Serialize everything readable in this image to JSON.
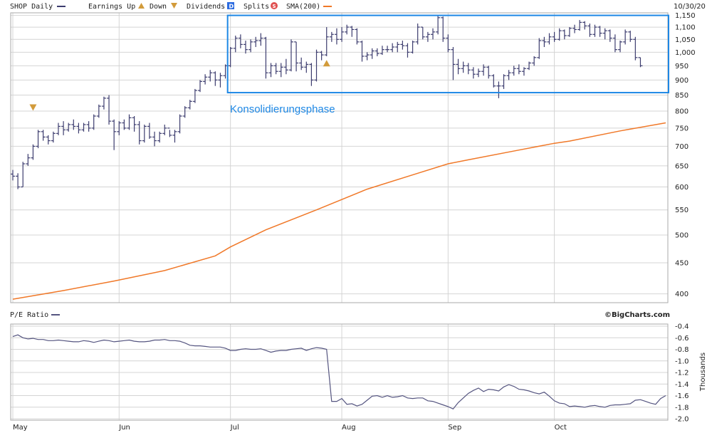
{
  "header": {
    "symbol_label": "SHOP Daily",
    "earnings_up_label": "Earnings Up",
    "down_label": "Down",
    "dividends_label": "Dividends",
    "dividends_glyph": "D",
    "splits_label": "Splits",
    "splits_glyph": "S",
    "sma_label": "SMA(200)",
    "date_label": "10/30/20"
  },
  "lower_header": {
    "pe_label": "P/E Ratio",
    "brand": "©BigCharts.com"
  },
  "colors": {
    "price": "#3c3c6e",
    "sma": "#f07828",
    "box": "#1e88e5",
    "earn": "#d29b3b",
    "pe": "#555580",
    "dividend": "#2b6be0",
    "split": "#e05050"
  },
  "icons": {
    "earnings_up": "triangle-up-icon",
    "earnings_down": "triangle-down-icon",
    "dividend": "d-square-icon",
    "split": "s-circle-icon"
  },
  "annotation": {
    "text": "Konsolidierungsphase"
  },
  "chart_data": [
    {
      "type": "ohlc",
      "title": "SHOP Daily",
      "yscale": "log",
      "ylim": [
        390,
        1155
      ],
      "yticks": [
        400,
        450,
        500,
        550,
        600,
        650,
        700,
        750,
        800,
        850,
        900,
        950,
        1000,
        1050,
        1100,
        1150
      ],
      "ytick_labels": [
        "400",
        "450",
        "500",
        "550",
        "600",
        "650",
        "700",
        "750",
        "800",
        "850",
        "900",
        "950",
        "1,000",
        "1,050",
        "1,100",
        "1,150"
      ],
      "xticks": [
        {
          "index": 0,
          "label": "May"
        },
        {
          "index": 21,
          "label": "Jun"
        },
        {
          "index": 43,
          "label": "Jul"
        },
        {
          "index": 65,
          "label": "Aug"
        },
        {
          "index": 86,
          "label": "Sep"
        },
        {
          "index": 107,
          "label": "Oct"
        }
      ],
      "n_days": 130,
      "ohlc": [
        [
          630,
          640,
          615,
          625
        ],
        [
          625,
          632,
          595,
          600
        ],
        [
          600,
          660,
          600,
          655
        ],
        [
          655,
          680,
          650,
          670
        ],
        [
          670,
          705,
          665,
          700
        ],
        [
          700,
          745,
          695,
          740
        ],
        [
          740,
          745,
          715,
          725
        ],
        [
          725,
          730,
          705,
          715
        ],
        [
          715,
          740,
          710,
          735
        ],
        [
          735,
          765,
          730,
          755
        ],
        [
          755,
          770,
          730,
          745
        ],
        [
          745,
          765,
          740,
          760
        ],
        [
          760,
          775,
          745,
          755
        ],
        [
          755,
          765,
          735,
          745
        ],
        [
          745,
          765,
          740,
          760
        ],
        [
          760,
          770,
          740,
          750
        ],
        [
          750,
          790,
          745,
          785
        ],
        [
          785,
          820,
          780,
          815
        ],
        [
          815,
          845,
          805,
          840
        ],
        [
          840,
          850,
          760,
          770
        ],
        [
          770,
          775,
          690,
          740
        ],
        [
          740,
          770,
          730,
          765
        ],
        [
          765,
          775,
          745,
          750
        ],
        [
          750,
          790,
          745,
          780
        ],
        [
          780,
          785,
          740,
          760
        ],
        [
          760,
          770,
          705,
          715
        ],
        [
          715,
          760,
          710,
          755
        ],
        [
          755,
          765,
          720,
          725
        ],
        [
          725,
          740,
          700,
          715
        ],
        [
          715,
          740,
          710,
          735
        ],
        [
          735,
          760,
          730,
          750
        ],
        [
          750,
          745,
          725,
          730
        ],
        [
          730,
          745,
          710,
          740
        ],
        [
          740,
          790,
          735,
          785
        ],
        [
          785,
          815,
          780,
          810
        ],
        [
          810,
          835,
          805,
          830
        ],
        [
          830,
          870,
          825,
          865
        ],
        [
          865,
          900,
          860,
          895
        ],
        [
          895,
          920,
          885,
          910
        ],
        [
          910,
          935,
          895,
          925
        ],
        [
          925,
          930,
          880,
          900
        ],
        [
          900,
          925,
          875,
          915
        ],
        [
          915,
          955,
          905,
          950
        ],
        [
          950,
          1020,
          945,
          1015
        ],
        [
          1015,
          1065,
          1000,
          1055
        ],
        [
          1055,
          1070,
          1015,
          1030
        ],
        [
          1030,
          1045,
          995,
          1010
        ],
        [
          1010,
          1050,
          1000,
          1040
        ],
        [
          1040,
          1060,
          1020,
          1045
        ],
        [
          1045,
          1075,
          1025,
          1055
        ],
        [
          1055,
          1060,
          905,
          925
        ],
        [
          925,
          960,
          910,
          950
        ],
        [
          950,
          960,
          920,
          930
        ],
        [
          930,
          960,
          910,
          945
        ],
        [
          945,
          975,
          920,
          935
        ],
        [
          935,
          1050,
          930,
          1040
        ],
        [
          1040,
          1040,
          930,
          960
        ],
        [
          960,
          980,
          935,
          945
        ],
        [
          945,
          965,
          925,
          955
        ],
        [
          955,
          960,
          880,
          900
        ],
        [
          900,
          1010,
          895,
          1000
        ],
        [
          1000,
          1005,
          970,
          990
        ],
        [
          990,
          1100,
          985,
          1060
        ],
        [
          1060,
          1080,
          1040,
          1070
        ],
        [
          1070,
          1095,
          1030,
          1050
        ],
        [
          1050,
          1100,
          1040,
          1080
        ],
        [
          1080,
          1110,
          1070,
          1100
        ],
        [
          1100,
          1105,
          1060,
          1090
        ],
        [
          1090,
          1095,
          1030,
          1040
        ],
        [
          1040,
          1045,
          965,
          985
        ],
        [
          985,
          1000,
          970,
          990
        ],
        [
          990,
          1015,
          975,
          1005
        ],
        [
          1005,
          1015,
          985,
          995
        ],
        [
          995,
          1025,
          990,
          1010
        ],
        [
          1010,
          1025,
          1000,
          1010
        ],
        [
          1010,
          1035,
          1000,
          1020
        ],
        [
          1020,
          1040,
          1000,
          1030
        ],
        [
          1030,
          1045,
          1010,
          1025
        ],
        [
          1025,
          1035,
          980,
          1000
        ],
        [
          1000,
          1045,
          995,
          1040
        ],
        [
          1040,
          1115,
          1030,
          1100
        ],
        [
          1100,
          1100,
          1050,
          1060
        ],
        [
          1060,
          1080,
          1040,
          1070
        ],
        [
          1070,
          1095,
          1050,
          1080
        ],
        [
          1080,
          1150,
          1070,
          1140
        ],
        [
          1140,
          1145,
          1040,
          1055
        ],
        [
          1055,
          1070,
          1000,
          1010
        ],
        [
          1010,
          1020,
          900,
          955
        ],
        [
          955,
          975,
          920,
          940
        ],
        [
          940,
          965,
          925,
          950
        ],
        [
          950,
          960,
          920,
          935
        ],
        [
          935,
          945,
          905,
          920
        ],
        [
          920,
          940,
          910,
          930
        ],
        [
          930,
          955,
          915,
          945
        ],
        [
          945,
          950,
          905,
          915
        ],
        [
          915,
          920,
          875,
          880
        ],
        [
          880,
          895,
          840,
          880
        ],
        [
          880,
          920,
          870,
          915
        ],
        [
          915,
          935,
          900,
          925
        ],
        [
          925,
          950,
          915,
          940
        ],
        [
          940,
          955,
          920,
          930
        ],
        [
          930,
          945,
          915,
          940
        ],
        [
          940,
          965,
          935,
          960
        ],
        [
          960,
          985,
          950,
          980
        ],
        [
          980,
          1055,
          975,
          1045
        ],
        [
          1045,
          1060,
          1020,
          1040
        ],
        [
          1040,
          1075,
          1030,
          1060
        ],
        [
          1060,
          1080,
          1040,
          1050
        ],
        [
          1050,
          1095,
          1045,
          1085
        ],
        [
          1085,
          1090,
          1050,
          1065
        ],
        [
          1065,
          1100,
          1060,
          1095
        ],
        [
          1095,
          1110,
          1075,
          1090
        ],
        [
          1090,
          1130,
          1085,
          1120
        ],
        [
          1120,
          1125,
          1090,
          1105
        ],
        [
          1105,
          1115,
          1060,
          1070
        ],
        [
          1070,
          1110,
          1060,
          1100
        ],
        [
          1100,
          1105,
          1060,
          1075
        ],
        [
          1075,
          1095,
          1050,
          1085
        ],
        [
          1085,
          1090,
          1040,
          1055
        ],
        [
          1055,
          1070,
          1000,
          1010
        ],
        [
          1010,
          1045,
          1000,
          1040
        ],
        [
          1040,
          1090,
          1030,
          1080
        ],
        [
          1080,
          1085,
          1040,
          1050
        ],
        [
          1050,
          1060,
          970,
          980
        ],
        [
          980,
          980,
          945,
          950
        ]
      ],
      "sma200": [
        [
          0,
          392
        ],
        [
          10,
          405
        ],
        [
          20,
          420
        ],
        [
          30,
          437
        ],
        [
          40,
          462
        ],
        [
          43,
          478
        ],
        [
          50,
          510
        ],
        [
          60,
          550
        ],
        [
          70,
          595
        ],
        [
          80,
          632
        ],
        [
          86,
          655
        ],
        [
          90,
          665
        ],
        [
          100,
          690
        ],
        [
          107,
          708
        ],
        [
          110,
          714
        ],
        [
          120,
          742
        ],
        [
          129,
          765
        ]
      ],
      "earnings_up": [
        {
          "index": 62,
          "price": 958
        }
      ],
      "earnings_down": [
        {
          "index": 4,
          "price": 812
        }
      ],
      "annotation_box": {
        "start": 43,
        "end": 129,
        "low": 858,
        "high": 1150
      }
    },
    {
      "type": "line",
      "title": "P/E Ratio",
      "ylabel": "Thousands",
      "ylim": [
        -2.0,
        -0.4
      ],
      "yticks": [
        -0.4,
        -0.6,
        -0.8,
        -1.0,
        -1.2,
        -1.4,
        -1.6,
        -1.8,
        -2.0
      ],
      "ytick_labels": [
        "-0.4",
        "-0.6",
        "-0.8",
        "-1.0",
        "-1.2",
        "-1.4",
        "-1.6",
        "-1.8",
        "-2.0"
      ],
      "x": [
        0,
        1,
        2,
        3,
        4,
        5,
        6,
        7,
        8,
        9,
        10,
        11,
        12,
        13,
        14,
        15,
        16,
        17,
        18,
        19,
        20,
        21,
        22,
        23,
        24,
        25,
        26,
        27,
        28,
        29,
        30,
        31,
        32,
        33,
        34,
        35,
        36,
        37,
        38,
        39,
        40,
        41,
        42,
        43,
        44,
        45,
        46,
        47,
        48,
        49,
        50,
        51,
        52,
        53,
        54,
        55,
        56,
        57,
        58,
        59,
        60,
        61,
        62,
        63,
        64,
        65,
        66,
        67,
        68,
        69,
        70,
        71,
        72,
        73,
        74,
        75,
        76,
        77,
        78,
        79,
        80,
        81,
        82,
        83,
        84,
        85,
        86,
        87,
        88,
        89,
        90,
        91,
        92,
        93,
        94,
        95,
        96,
        97,
        98,
        99,
        100,
        101,
        102,
        103,
        104,
        105,
        106,
        107,
        108,
        109,
        110,
        111,
        112,
        113,
        114,
        115,
        116,
        117,
        118,
        119,
        120,
        121,
        122,
        123,
        124,
        125,
        126,
        127,
        128,
        129
      ],
      "values": [
        -0.58,
        -0.55,
        -0.6,
        -0.62,
        -0.61,
        -0.63,
        -0.63,
        -0.65,
        -0.65,
        -0.64,
        -0.65,
        -0.66,
        -0.67,
        -0.67,
        -0.65,
        -0.66,
        -0.68,
        -0.66,
        -0.64,
        -0.65,
        -0.67,
        -0.66,
        -0.65,
        -0.64,
        -0.66,
        -0.67,
        -0.67,
        -0.66,
        -0.64,
        -0.64,
        -0.63,
        -0.65,
        -0.65,
        -0.66,
        -0.69,
        -0.73,
        -0.74,
        -0.74,
        -0.75,
        -0.76,
        -0.76,
        -0.76,
        -0.78,
        -0.82,
        -0.82,
        -0.8,
        -0.79,
        -0.8,
        -0.8,
        -0.79,
        -0.82,
        -0.85,
        -0.83,
        -0.82,
        -0.82,
        -0.8,
        -0.79,
        -0.78,
        -0.82,
        -0.79,
        -0.77,
        -0.78,
        -0.8,
        -1.7,
        -1.7,
        -1.65,
        -1.75,
        -1.74,
        -1.78,
        -1.75,
        -1.68,
        -1.61,
        -1.6,
        -1.63,
        -1.6,
        -1.63,
        -1.62,
        -1.6,
        -1.64,
        -1.65,
        -1.64,
        -1.64,
        -1.69,
        -1.7,
        -1.73,
        -1.76,
        -1.79,
        -1.83,
        -1.72,
        -1.64,
        -1.56,
        -1.51,
        -1.47,
        -1.53,
        -1.49,
        -1.5,
        -1.52,
        -1.45,
        -1.41,
        -1.44,
        -1.49,
        -1.5,
        -1.52,
        -1.55,
        -1.57,
        -1.54,
        -1.61,
        -1.69,
        -1.73,
        -1.74,
        -1.79,
        -1.78,
        -1.79,
        -1.8,
        -1.78,
        -1.77,
        -1.79,
        -1.8,
        -1.77,
        -1.76,
        -1.76,
        -1.75,
        -1.74,
        -1.68,
        -1.67,
        -1.7,
        -1.73,
        -1.75,
        -1.65,
        -1.6
      ],
      "xticks": [
        {
          "index": 0,
          "label": "May"
        },
        {
          "index": 21,
          "label": "Jun"
        },
        {
          "index": 43,
          "label": "Jul"
        },
        {
          "index": 65,
          "label": "Aug"
        },
        {
          "index": 86,
          "label": "Sep"
        },
        {
          "index": 107,
          "label": "Oct"
        }
      ]
    }
  ]
}
